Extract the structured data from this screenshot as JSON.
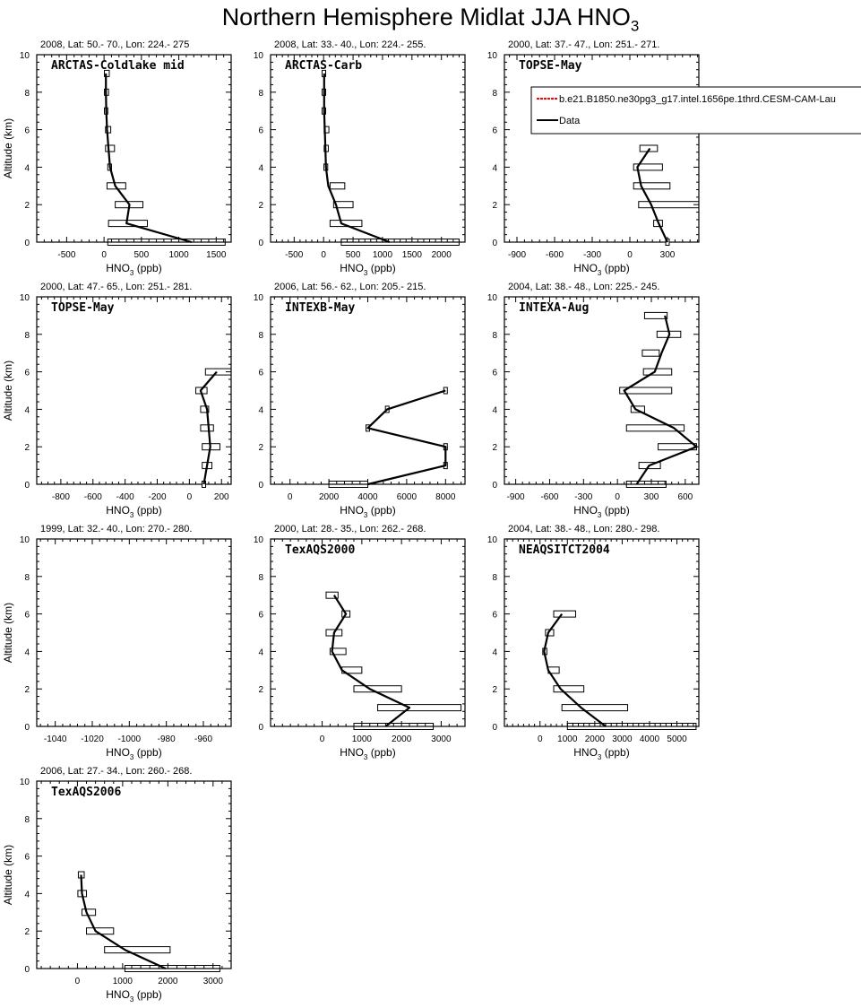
{
  "title": {
    "main": "Northern Hemisphere Midlat JJA HNO",
    "sub": "3"
  },
  "legend": {
    "model_label": "b.e21.B1850.ne30pg3_g17.intel.1656pe.1thrd.CESM-CAM-Lau",
    "data_label": "Data",
    "model_color": "#ff0000",
    "data_color": "#000000"
  },
  "chart_data": [
    {
      "type": "line",
      "panel": 1,
      "header": "2008, Lat:  50.- 70., Lon: 224.- 275",
      "name": "ARCTAS-Coldlake mid",
      "xlabel": "HNO",
      "xlabel_sub": "3",
      "xlabel_unit": "(ppb)",
      "ylabel": "Altitude (km)",
      "xlim": [
        -900,
        1700
      ],
      "ylim": [
        0,
        10
      ],
      "xticks": [
        -500,
        0,
        500,
        1000,
        1500
      ],
      "yticks": [
        0,
        2,
        4,
        6,
        8,
        10
      ],
      "series": [
        {
          "name": "Data",
          "y": [
            0,
            1,
            2,
            3,
            4,
            5,
            6,
            7,
            8,
            9
          ],
          "x": [
            1170,
            300,
            340,
            150,
            80,
            60,
            40,
            30,
            25,
            25
          ],
          "err_left": [
            50,
            60,
            150,
            40,
            50,
            20,
            20,
            5,
            5,
            5
          ],
          "err_right": [
            1620,
            580,
            520,
            290,
            100,
            140,
            90,
            50,
            60,
            70
          ]
        }
      ]
    },
    {
      "type": "line",
      "panel": 2,
      "header": "2008, Lat:  33.- 40., Lon: 224.- 255.",
      "name": "ARCTAS-Carb",
      "xlabel": "HNO",
      "xlabel_sub": "3",
      "xlabel_unit": "(ppb)",
      "ylabel": "",
      "xlim": [
        -900,
        2400
      ],
      "ylim": [
        0,
        10
      ],
      "xticks": [
        -500,
        0,
        500,
        1000,
        1500,
        2000
      ],
      "yticks": [
        0,
        2,
        4,
        6,
        8,
        10
      ],
      "series": [
        {
          "name": "Data",
          "y": [
            0,
            1,
            2,
            3,
            4,
            5,
            6,
            7,
            8,
            9
          ],
          "x": [
            1120,
            300,
            210,
            80,
            40,
            30,
            20,
            10,
            10,
            10
          ],
          "err_left": [
            300,
            110,
            170,
            110,
            5,
            10,
            10,
            5,
            5,
            5
          ],
          "err_right": [
            2300,
            650,
            500,
            360,
            70,
            80,
            90,
            10,
            10,
            10
          ]
        }
      ]
    },
    {
      "type": "line",
      "panel": 3,
      "header": "2000, Lat: 37.- 47., Lon: 251.- 271.",
      "name": "TOPSE-May",
      "xlabel": "HNO",
      "xlabel_sub": "3",
      "xlabel_unit": "(ppb)",
      "ylabel": "",
      "xlim": [
        -1000,
        550
      ],
      "ylim": [
        0,
        10
      ],
      "xticks": [
        -900,
        -600,
        -300,
        0,
        300
      ],
      "yticks": [
        0,
        2,
        4,
        6,
        8,
        10
      ],
      "series": [
        {
          "name": "Data",
          "y": [
            0,
            1,
            2,
            3,
            4,
            5
          ],
          "x": [
            300,
            230,
            170,
            90,
            60,
            160
          ],
          "err_left": [
            300,
            190,
            70,
            30,
            30,
            80
          ],
          "err_right": [
            300,
            260,
            560,
            320,
            260,
            220
          ]
        }
      ]
    },
    {
      "type": "line",
      "panel": 4,
      "header": "2000, Lat: 47.- 65., Lon: 251.- 281.",
      "name": "TOPSE-May",
      "xlabel": "HNO",
      "xlabel_sub": "3",
      "xlabel_unit": "(ppb)",
      "ylabel": "Altitude (km)",
      "xlim": [
        -950,
        260
      ],
      "ylim": [
        0,
        10
      ],
      "xticks": [
        -800,
        -600,
        -400,
        -200,
        0,
        200
      ],
      "yticks": [
        0,
        2,
        4,
        6,
        8,
        10
      ],
      "series": [
        {
          "name": "Data",
          "y": [
            0,
            1,
            2,
            3,
            4,
            5,
            6
          ],
          "x": [
            90,
            110,
            130,
            120,
            110,
            70,
            170
          ],
          "err_left": [
            90,
            80,
            80,
            70,
            70,
            40,
            100
          ],
          "err_right": [
            90,
            140,
            190,
            150,
            120,
            110,
            270
          ]
        }
      ]
    },
    {
      "type": "line",
      "panel": 5,
      "header": "2006, Lat: 56.- 62., Lon: 205.- 215.",
      "name": "INTEXB-May",
      "xlabel": "HNO",
      "xlabel_sub": "3",
      "xlabel_unit": "(ppb)",
      "ylabel": "",
      "xlim": [
        -1000,
        9000
      ],
      "ylim": [
        0,
        10
      ],
      "xticks": [
        0,
        2000,
        4000,
        6000,
        8000
      ],
      "yticks": [
        0,
        2,
        4,
        6,
        8,
        10
      ],
      "series": [
        {
          "name": "Data",
          "y": [
            0,
            1,
            2,
            3,
            4,
            5
          ],
          "x": [
            4000,
            8000,
            8000,
            4000,
            5000,
            8000
          ],
          "err_left": [
            2000,
            8000,
            8000,
            4000,
            5000,
            8000
          ],
          "err_right": [
            4000,
            8000,
            8000,
            4000,
            5000,
            8000
          ]
        }
      ]
    },
    {
      "type": "line",
      "panel": 6,
      "header": "2004, Lat: 38.- 48., Lon: 225.- 245.",
      "name": "INTEXA-Aug",
      "xlabel": "HNO",
      "xlabel_sub": "3",
      "xlabel_unit": "(ppb)",
      "ylabel": "",
      "xlim": [
        -1000,
        720
      ],
      "ylim": [
        0,
        10
      ],
      "xticks": [
        -900,
        -600,
        -300,
        0,
        300,
        600
      ],
      "yticks": [
        0,
        2,
        4,
        6,
        8,
        10
      ],
      "series": [
        {
          "name": "Data",
          "y": [
            0,
            1,
            2,
            3,
            4,
            5,
            6,
            7,
            8,
            9
          ],
          "x": [
            170,
            280,
            700,
            500,
            160,
            60,
            330,
            390,
            460,
            420
          ],
          "err_left": [
            80,
            190,
            360,
            80,
            120,
            20,
            230,
            220,
            350,
            240
          ],
          "err_right": [
            430,
            380,
            700,
            590,
            240,
            480,
            480,
            370,
            560,
            440
          ]
        }
      ]
    },
    {
      "type": "line",
      "panel": 7,
      "header": "1999, Lat: 32.- 40., Lon: 270.- 280.",
      "name": "",
      "xlabel": "HNO",
      "xlabel_sub": "3",
      "xlabel_unit": "(ppb)",
      "ylabel": "Altitude (km)",
      "xlim": [
        -1050,
        -945
      ],
      "ylim": [
        0,
        10
      ],
      "xticks": [
        -1040,
        -1020,
        -1000,
        -980,
        -960
      ],
      "yticks": [
        0,
        2,
        4,
        6,
        8,
        10
      ],
      "series": []
    },
    {
      "type": "line",
      "panel": 8,
      "header": "2000, Lat: 28.- 35., Lon: 262.- 268.",
      "name": "TexAQS2000",
      "xlabel": "HNO",
      "xlabel_sub": "3",
      "xlabel_unit": "(ppb)",
      "ylabel": "",
      "xlim": [
        -1300,
        3600
      ],
      "ylim": [
        0,
        10
      ],
      "xticks": [
        0,
        1000,
        2000,
        3000
      ],
      "yticks": [
        0,
        2,
        4,
        6,
        8,
        10
      ],
      "series": [
        {
          "name": "Data",
          "y": [
            0,
            1,
            2,
            3,
            4,
            5,
            6,
            7
          ],
          "x": [
            1600,
            2200,
            1200,
            500,
            250,
            300,
            600,
            300
          ],
          "err_left": [
            800,
            1400,
            800,
            500,
            200,
            100,
            500,
            100
          ],
          "err_right": [
            2800,
            3500,
            2000,
            1000,
            600,
            500,
            700,
            400
          ]
        }
      ]
    },
    {
      "type": "line",
      "panel": 9,
      "header": "2004, Lat: 38.- 48., Lon: 280.- 298.",
      "name": "NEAQSITCT2004",
      "xlabel": "HNO",
      "xlabel_sub": "3",
      "xlabel_unit": "(ppb)",
      "ylabel": "",
      "xlim": [
        -1300,
        5800
      ],
      "ylim": [
        0,
        10
      ],
      "xticks": [
        0,
        1000,
        2000,
        3000,
        4000,
        5000
      ],
      "yticks": [
        0,
        2,
        4,
        6,
        8,
        10
      ],
      "series": [
        {
          "name": "Data",
          "y": [
            0,
            1,
            2,
            3,
            4,
            5,
            6
          ],
          "x": [
            2400,
            1500,
            750,
            300,
            150,
            300,
            800
          ],
          "err_left": [
            1000,
            800,
            500,
            300,
            100,
            200,
            500
          ],
          "err_right": [
            5700,
            3200,
            1600,
            700,
            250,
            500,
            1300
          ]
        }
      ]
    },
    {
      "type": "line",
      "panel": 10,
      "header": "2006, Lat: 27.- 34., Lon: 260.- 268.",
      "name": "TexAQS2006",
      "xlabel": "HNO",
      "xlabel_sub": "3",
      "xlabel_unit": "(ppb)",
      "ylabel": "Altitude (km)",
      "xlim": [
        -900,
        3400
      ],
      "ylim": [
        0,
        10
      ],
      "xticks": [
        0,
        1000,
        2000,
        3000
      ],
      "yticks": [
        0,
        2,
        4,
        6,
        8,
        10
      ],
      "series": [
        {
          "name": "Data",
          "y": [
            0,
            1,
            2,
            3,
            4,
            5
          ],
          "x": [
            1950,
            1050,
            400,
            200,
            100,
            80
          ],
          "err_left": [
            1050,
            600,
            200,
            100,
            10,
            20
          ],
          "err_right": [
            3150,
            2050,
            800,
            400,
            200,
            150
          ]
        }
      ]
    }
  ]
}
